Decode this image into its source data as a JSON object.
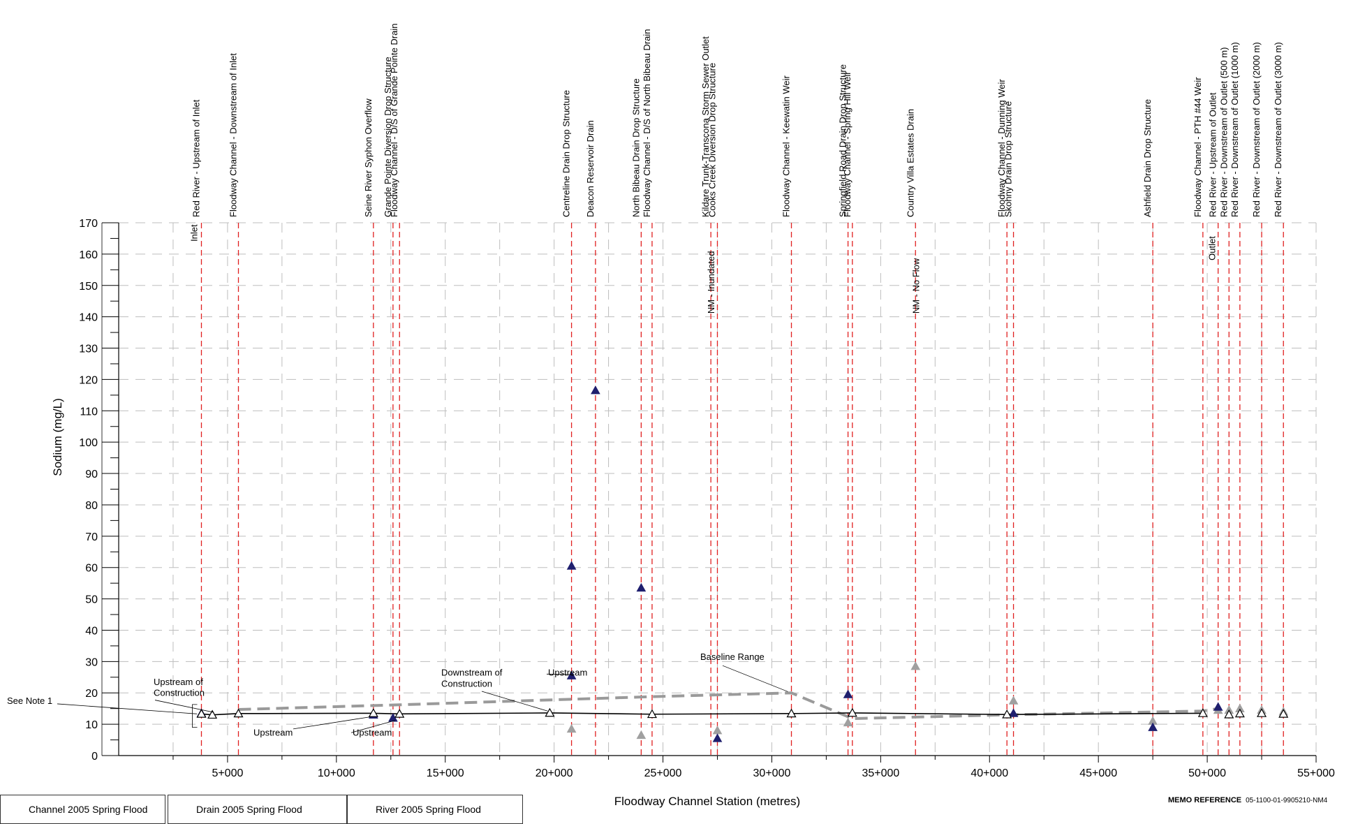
{
  "chart_data": {
    "type": "scatter",
    "xlabel": "Floodway Channel Station (metres)",
    "ylabel": "Sodium (mg/L)",
    "xlim": [
      0,
      55000
    ],
    "ylim": [
      0,
      170
    ],
    "x_ticks": [
      5000,
      10000,
      15000,
      20000,
      25000,
      30000,
      35000,
      40000,
      45000,
      50000,
      55000
    ],
    "x_tick_labels": [
      "5+000",
      "10+000",
      "15+000",
      "20+000",
      "25+000",
      "30+000",
      "35+000",
      "40+000",
      "45+000",
      "50+000",
      "55+000"
    ],
    "y_ticks": [
      0,
      10,
      20,
      30,
      40,
      50,
      60,
      70,
      80,
      90,
      100,
      110,
      120,
      130,
      140,
      150,
      160,
      170
    ],
    "grid": true,
    "sites": [
      {
        "x": 3800,
        "label": "Red River - Upstream of Inlet"
      },
      {
        "x": 5500,
        "label": "Floodway Channel - Downstream of Inlet"
      },
      {
        "x": 11700,
        "label": "Seine River Syphon Overflow"
      },
      {
        "x": 12600,
        "label": "Grande Pointe Diversion Drop Structure"
      },
      {
        "x": 12900,
        "label": "Floodway Channel - D/S of Grande Pointe Drain"
      },
      {
        "x": 20800,
        "label": "Centreline Drain Drop Structure"
      },
      {
        "x": 21900,
        "label": "Deacon Reservoir Drain"
      },
      {
        "x": 24000,
        "label": "North Bibeau Drain Drop Structure"
      },
      {
        "x": 24500,
        "label": "Floodway Channel - D/S of North Bibeau Drain"
      },
      {
        "x": 27200,
        "label": "Kildare Trunk-Transcona Storm Sewer Outlet"
      },
      {
        "x": 27500,
        "label": "Cooks Creek Diversion Drop Structure"
      },
      {
        "x": 30900,
        "label": "Floodway Channel - Keewatin Weir"
      },
      {
        "x": 33500,
        "label": "Springfield Road Drain Drop Structure"
      },
      {
        "x": 33700,
        "label": "Floodway Channel - Spring Hill Weir"
      },
      {
        "x": 36600,
        "label": "Country Villa Estates Drain"
      },
      {
        "x": 40800,
        "label": "Floodway Channel - Dunning Weir"
      },
      {
        "x": 41100,
        "label": "Skohny Drain Drop Structure"
      },
      {
        "x": 47500,
        "label": "Ashfield Drain Drop Structure"
      },
      {
        "x": 49800,
        "label": "Floodway Channel - PTH #44 Weir"
      },
      {
        "x": 50500,
        "label": "Red River - Upstream of Outlet"
      },
      {
        "x": 51000,
        "label": "Red River - Downstream of Outlet (500 m)"
      },
      {
        "x": 51500,
        "label": "Red River - Downstream of Outlet (1000 m)"
      },
      {
        "x": 52500,
        "label": "Red River - Downstream of Outlet (2000 m)"
      },
      {
        "x": 53500,
        "label": "Red River - Downstream of Outlet (3000 m)"
      }
    ],
    "baseline_range": {
      "name": "Baseline Range",
      "x": [
        5500,
        12900,
        24500,
        30900,
        33700,
        40800,
        49800,
        50500
      ],
      "y": [
        14.7,
        16.2,
        18.8,
        20.0,
        11.8,
        13.0,
        14.2,
        15.0
      ]
    },
    "channel_line": {
      "x": [
        3800,
        4300,
        5500,
        11700,
        12900,
        19800,
        24500,
        30900,
        33700,
        40800,
        49800
      ],
      "y": [
        13.3,
        13.0,
        13.4,
        13.5,
        13.3,
        13.6,
        13.2,
        13.4,
        13.6,
        13.1,
        13.5
      ]
    },
    "series": [
      {
        "name": "Channel 2005 Spring Flood",
        "points": [
          [
            3800,
            13.3
          ],
          [
            4300,
            13.0
          ],
          [
            5500,
            13.4
          ],
          [
            11700,
            13.5
          ],
          [
            12900,
            13.3
          ],
          [
            19800,
            13.6
          ],
          [
            24500,
            13.2
          ],
          [
            30900,
            13.4
          ],
          [
            33700,
            13.6
          ],
          [
            40800,
            13.1
          ],
          [
            49800,
            13.5
          ],
          [
            51000,
            13.1
          ],
          [
            51500,
            13.4
          ],
          [
            52500,
            13.5
          ],
          [
            53500,
            13.3
          ]
        ]
      },
      {
        "name": "Drain 2005 Spring Flood",
        "points": [
          [
            20800,
            8.5
          ],
          [
            24000,
            6.5
          ],
          [
            27500,
            8.0
          ],
          [
            33500,
            10.5
          ],
          [
            36600,
            28.5
          ],
          [
            41100,
            17.5
          ],
          [
            47500,
            11.0
          ],
          [
            50500,
            14.5
          ],
          [
            51000,
            14.5
          ],
          [
            51500,
            15.0
          ],
          [
            52500,
            14.5
          ],
          [
            53500,
            14.0
          ]
        ]
      },
      {
        "name": "River 2005 Spring Flood",
        "points": [
          [
            3800,
            13.5
          ],
          [
            11700,
            13.0
          ],
          [
            12600,
            12.0
          ],
          [
            20800,
            60.5
          ],
          [
            20800,
            25.5
          ],
          [
            21900,
            116.5
          ],
          [
            24000,
            53.5
          ],
          [
            27500,
            5.5
          ],
          [
            33500,
            19.5
          ],
          [
            41100,
            13.5
          ],
          [
            47500,
            9.0
          ],
          [
            50500,
            15.5
          ]
        ]
      }
    ],
    "annotations": {
      "inlet": "Inlet",
      "outlet": "Outlet",
      "nm_inundated": "NM - Inundated",
      "nm_no_flow": "NM - No Flow",
      "see_note_1": "See Note 1",
      "upstream_of_construction_1": "Upstream of",
      "upstream_of_construction_2": "Construction",
      "downstream_of_construction_1": "Downstream of",
      "downstream_of_construction_2": "Construction",
      "upstream": "Upstream",
      "baseline_range": "Baseline Range"
    },
    "legend": [
      "Channel 2005 Spring Flood",
      "Drain 2005 Spring Flood",
      "River 2005 Spring Flood"
    ],
    "colors": {
      "river": "#1f1f6e",
      "drain": "#a0a0a0",
      "channel": "#000000",
      "site_line": "#e02020",
      "baseline": "#9a9a9a",
      "grid": "#bdbdbd"
    }
  },
  "footer": {
    "memo_label": "MEMO REFERENCE",
    "memo_value": "05-1100-01-9905210-NM4"
  }
}
